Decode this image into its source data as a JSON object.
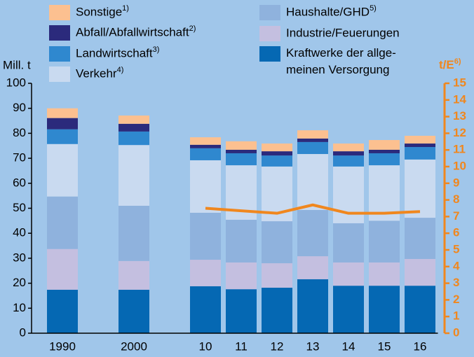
{
  "chart_data": {
    "type": "bar",
    "stacked": true,
    "categories": [
      "1990",
      null,
      "2000",
      null,
      "10",
      "11",
      "12",
      "13",
      "14",
      "15",
      "16"
    ],
    "y_label": "Mill. t",
    "y2_label": "t/E",
    "y2_label_footnote": "6)",
    "ylim": [
      0,
      100
    ],
    "yticks": [
      0,
      10,
      20,
      30,
      40,
      50,
      60,
      70,
      80,
      90,
      100
    ],
    "y2lim": [
      0,
      15
    ],
    "y2ticks": [
      0,
      1,
      2,
      3,
      4,
      5,
      6,
      7,
      8,
      9,
      10,
      11,
      12,
      13,
      14,
      15
    ],
    "y2color": "#f0871e",
    "series": [
      {
        "name": "Kraftwerke der allge-\nmeinen Versorgung",
        "color": "#0568b3",
        "values": [
          17.4,
          null,
          17.4,
          null,
          18.8,
          17.6,
          18.2,
          21.6,
          19,
          19,
          19
        ]
      },
      {
        "name": "Industrie/Feuerungen",
        "color": "#c4bfe0",
        "values": [
          16.3,
          null,
          11.5,
          null,
          10.6,
          10.7,
          9.8,
          9.2,
          9.3,
          9.3,
          10.7
        ]
      },
      {
        "name": "Haushalte/GHD",
        "footnote": "5)",
        "color": "#8fb2dd",
        "values": [
          21,
          null,
          22.1,
          null,
          18.8,
          17.1,
          16.8,
          18.5,
          15.7,
          16.7,
          16.5
        ]
      },
      {
        "name": "Verkehr",
        "footnote": "4)",
        "color": "#c9daf0",
        "values": [
          21,
          null,
          24.3,
          null,
          21,
          21.8,
          21.9,
          22.4,
          22.7,
          22.2,
          23.3
        ]
      },
      {
        "name": "Landwirtschaft",
        "footnote": "3)",
        "color": "#2f88cf",
        "values": [
          5.9,
          null,
          5.4,
          null,
          4.8,
          4.8,
          4.4,
          4.8,
          4.4,
          4.8,
          5
        ]
      },
      {
        "name": "Abfall/Abfallwirtschaft",
        "footnote": "2)",
        "color": "#2b2a7c",
        "values": [
          4.5,
          null,
          3.1,
          null,
          1.4,
          1.4,
          1.7,
          1.4,
          1.7,
          1.4,
          1.4
        ]
      },
      {
        "name": "Sonstige",
        "footnote": "1)",
        "color": "#fcc090",
        "values": [
          3.9,
          null,
          3.3,
          null,
          3,
          3.4,
          3.1,
          3.3,
          3.1,
          3.9,
          3.1
        ]
      }
    ],
    "line_series": [
      {
        "axis": "y2",
        "color": "#f0871e",
        "values": [
          null,
          null,
          null,
          null,
          7.5,
          7.35,
          7.2,
          7.7,
          7.2,
          7.2,
          7.3
        ]
      }
    ]
  }
}
